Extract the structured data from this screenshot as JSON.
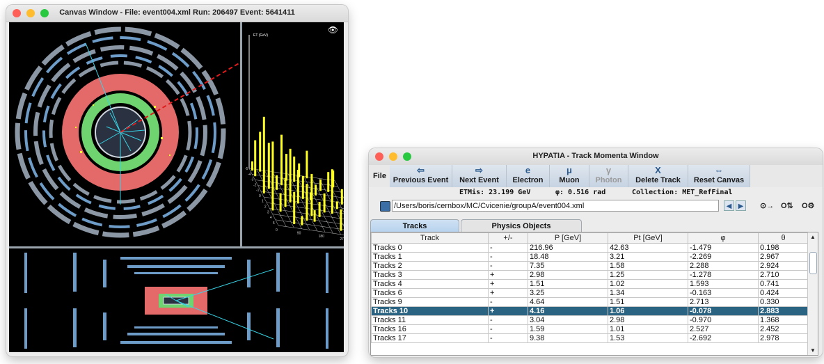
{
  "canvas_window": {
    "title": "Canvas Window - File: event004.xml  Run: 206497  Event: 5641411",
    "lego_axis_label": "ET (GeV)",
    "lego_phi_ticks": [
      "0",
      "90",
      "180",
      "270",
      "360"
    ],
    "lego_eta_ticks": [
      "-5",
      "-4",
      "-3",
      "-2",
      "-1",
      "0",
      "1",
      "2",
      "3",
      "4",
      "5"
    ],
    "lego_tower_heights": [
      0.12,
      0.55,
      0.2,
      0.35,
      0.08,
      0.7,
      0.15,
      0.42,
      0.25,
      0.6,
      0.18,
      0.9,
      0.3,
      0.22,
      0.48,
      0.1,
      0.66,
      0.28,
      0.38,
      0.14,
      0.52,
      0.2,
      1.0,
      0.33,
      0.16,
      0.44,
      0.26,
      0.12,
      0.58,
      0.19,
      0.36,
      0.24,
      0.1,
      0.47,
      0.15,
      0.3
    ],
    "colors": {
      "muon_chamber": "#8b97a5",
      "lar_calorimeter": "#e46a6a",
      "tile_calorimeter": "#e46a6a",
      "inner_detector": "#6fd46f",
      "track": "#37d3e6",
      "met_line": "#e01b1b",
      "lego_tower": "#ffff22"
    }
  },
  "track_window": {
    "title": "HYPATIA - Track Momenta Window",
    "file_menu": "File",
    "toolbar": [
      {
        "icon": "⇦",
        "label": "Previous Event",
        "enabled": true
      },
      {
        "icon": "⇨",
        "label": "Next Event",
        "enabled": true
      },
      {
        "icon": "e",
        "label": "Electron",
        "enabled": true
      },
      {
        "icon": "μ",
        "label": "Muon",
        "enabled": true
      },
      {
        "icon": "γ",
        "label": "Photon",
        "enabled": false
      },
      {
        "icon": "X",
        "label": "Delete Track",
        "enabled": true
      },
      {
        "icon": "⇔",
        "label": "Reset Canvas",
        "enabled": true
      }
    ],
    "info": {
      "etmis": "ETMis: 23.199 GeV",
      "phi": "φ: 0.516 rad",
      "collection": "Collection: MET_RefFinal"
    },
    "path": "/Users/boris/cernbox/MC/Cvicenie/groupA/event004.xml",
    "options": [
      "⊙→",
      "O⇅",
      "O⚙"
    ],
    "tabs": [
      {
        "label": "Tracks",
        "active": true
      },
      {
        "label": "Physics Objects",
        "active": false
      }
    ],
    "table": {
      "headers": [
        "Track",
        "+/-",
        "P [GeV]",
        "Pt [GeV]",
        "φ",
        "θ"
      ],
      "rows": [
        [
          "Tracks 0",
          "-",
          "216.96",
          "42.63",
          "-1.479",
          "0.198"
        ],
        [
          "Tracks 1",
          "-",
          "18.48",
          "3.21",
          "-2.269",
          "2.967"
        ],
        [
          "Tracks 2",
          "-",
          "7.35",
          "1.58",
          "2.288",
          "2.924"
        ],
        [
          "Tracks 3",
          "+",
          "2.98",
          "1.25",
          "-1.278",
          "2.710"
        ],
        [
          "Tracks 4",
          "+",
          "1.51",
          "1.02",
          "1.593",
          "0.741"
        ],
        [
          "Tracks 6",
          "+",
          "3.25",
          "1.34",
          "-0.163",
          "0.424"
        ],
        [
          "Tracks 9",
          "-",
          "4.64",
          "1.51",
          "2.713",
          "0.330"
        ],
        [
          "Tracks 10",
          "+",
          "4.16",
          "1.06",
          "-0.078",
          "2.883"
        ],
        [
          "Tracks 11",
          "-",
          "3.04",
          "2.98",
          "-0.970",
          "1.368"
        ],
        [
          "Tracks 16",
          "-",
          "1.59",
          "1.01",
          "2.527",
          "2.452"
        ],
        [
          "Tracks 17",
          "-",
          "9.38",
          "1.53",
          "-2.692",
          "2.978"
        ]
      ],
      "selected_row": 7,
      "selection_color": "#2a6482"
    }
  }
}
